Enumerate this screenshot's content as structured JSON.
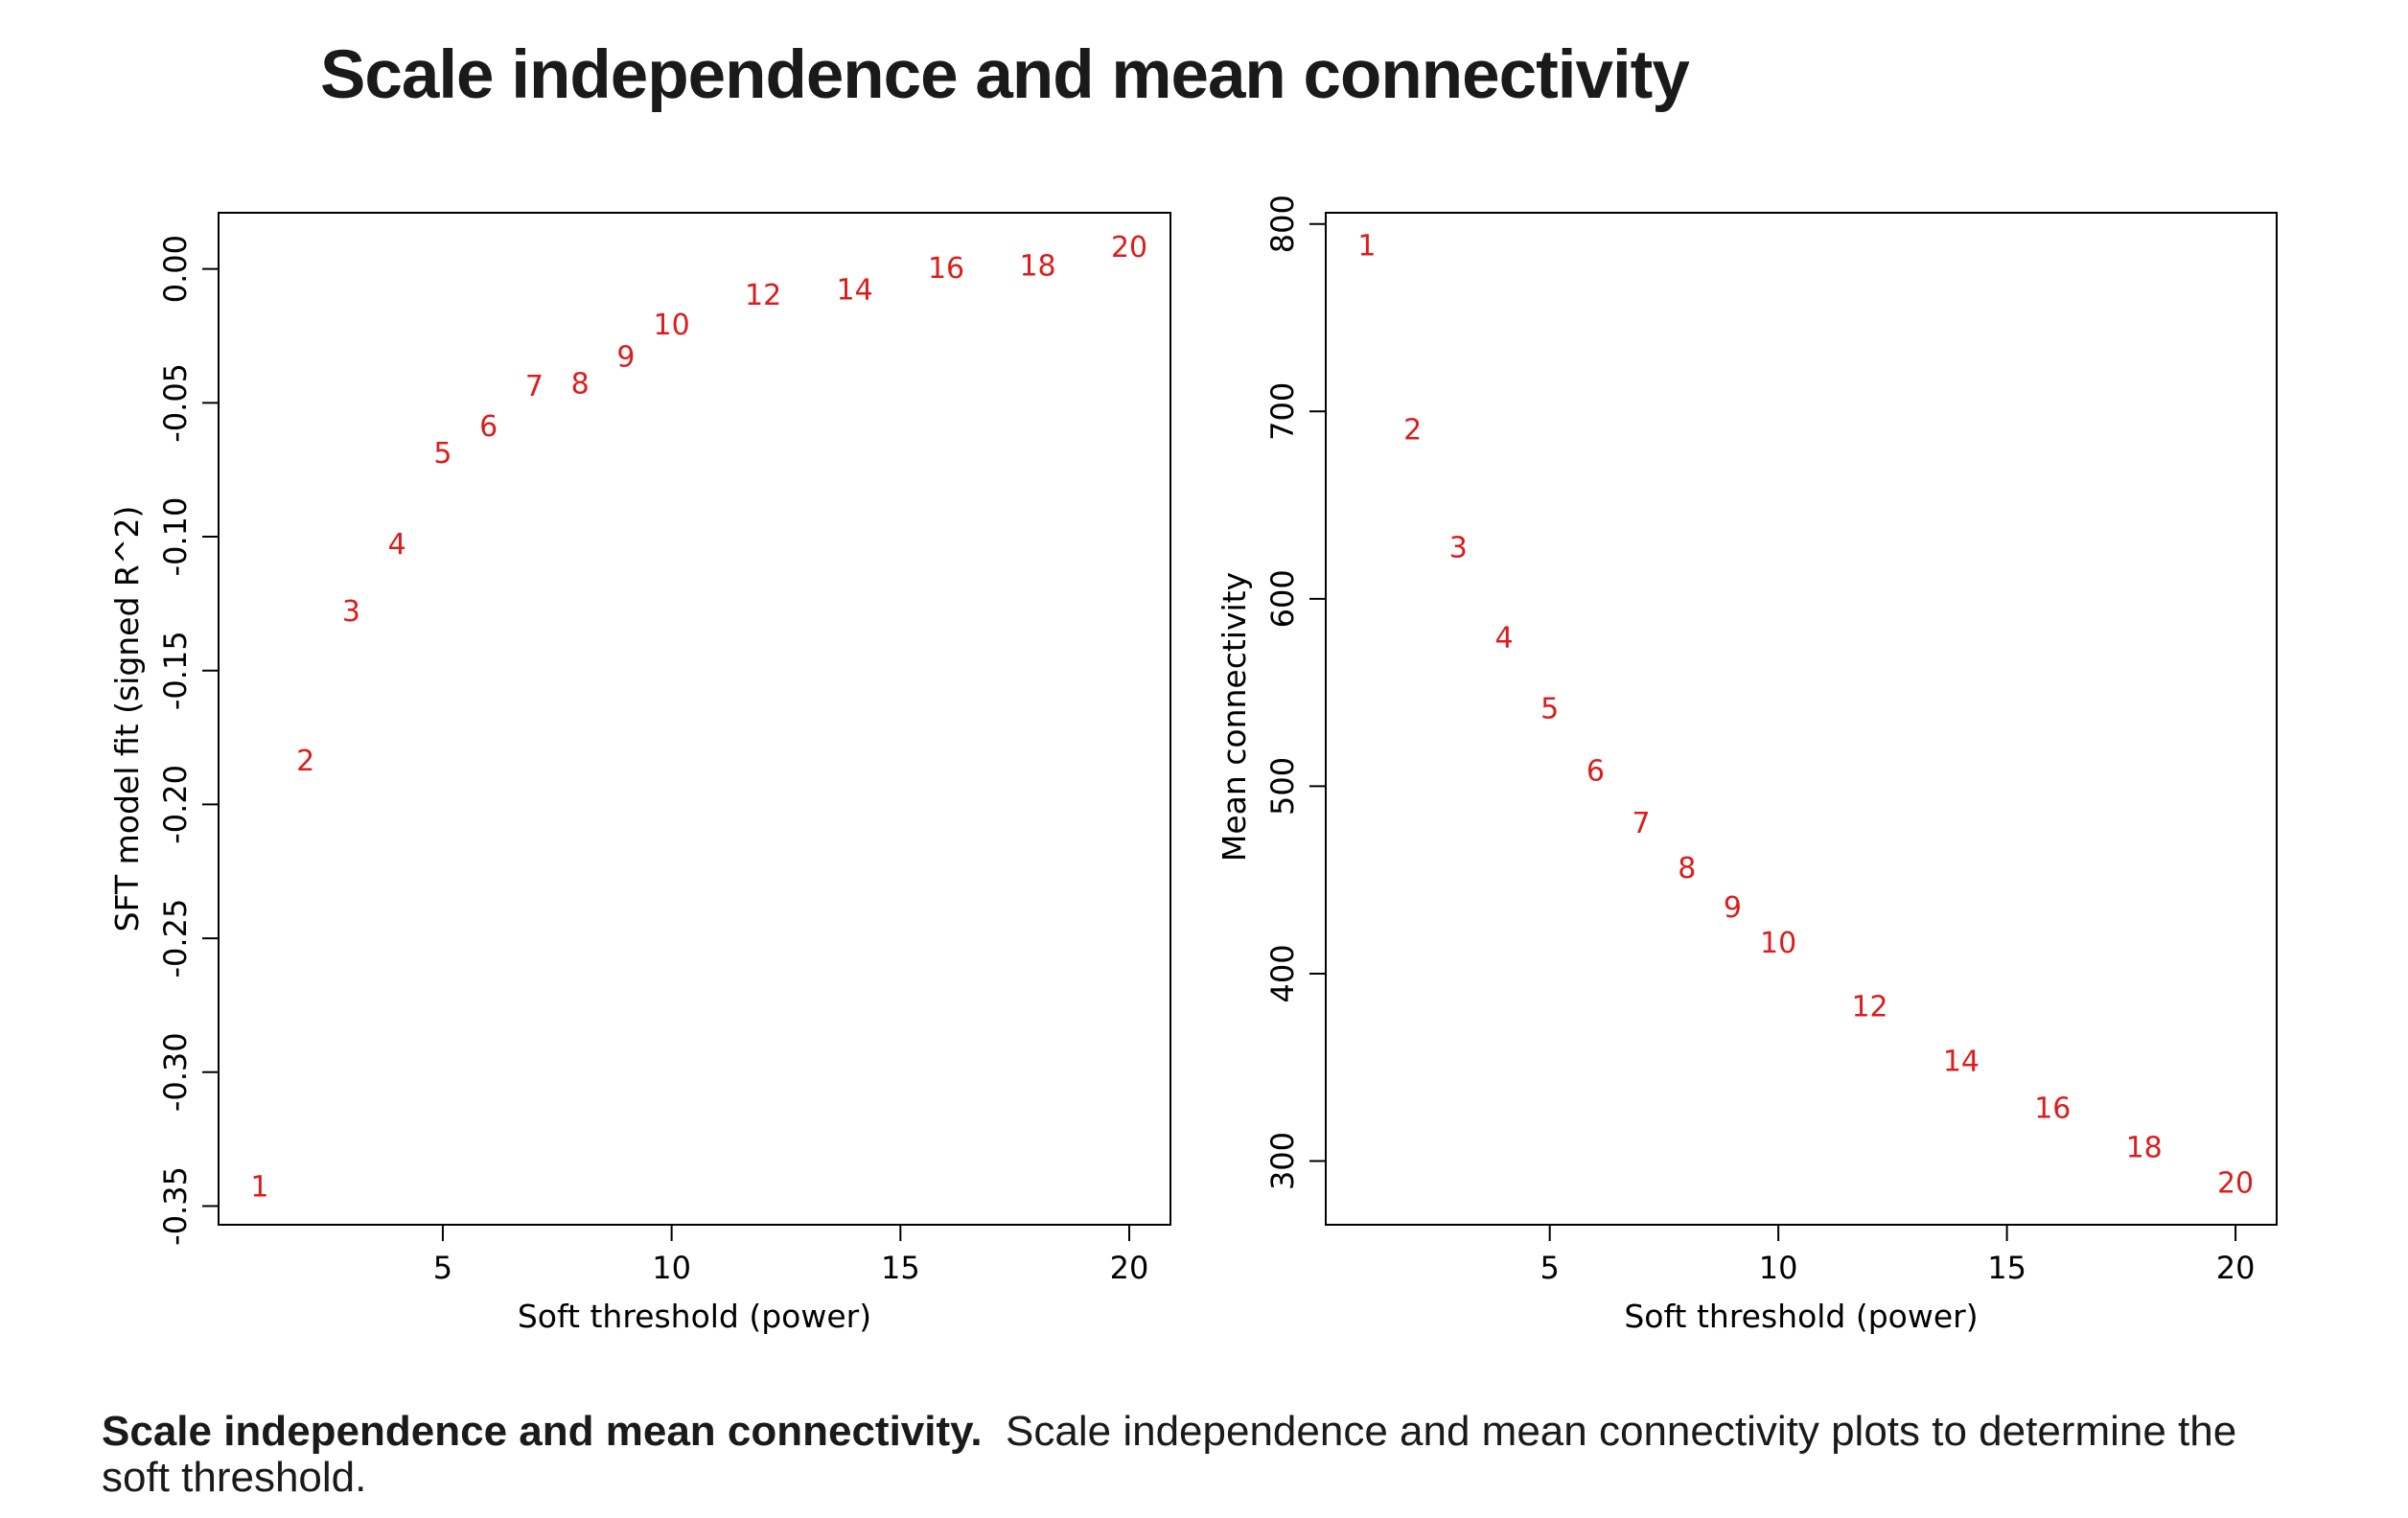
{
  "title": "Scale independence and mean connectivity",
  "caption": {
    "title": "Scale independence and mean connectivity.",
    "text": "Scale independence and mean connectivity plots to determine the soft threshold."
  },
  "colors": {
    "points": "#dd1c1c",
    "axis": "#000000",
    "text": "#1a1a1a"
  },
  "chart_data": [
    {
      "type": "scatter",
      "xlabel": "Soft threshold (power)",
      "ylabel": "SFT model fit (signed R^2)",
      "xlim": [
        0.1,
        20.9
      ],
      "ylim": [
        -0.357,
        0.021
      ],
      "xticks": [
        5,
        10,
        15,
        20
      ],
      "yticks": [
        -0.35,
        -0.3,
        -0.25,
        -0.2,
        -0.15,
        -0.1,
        -0.05,
        0.0
      ],
      "ytick_labels": [
        "-0.35",
        "-0.30",
        "-0.25",
        "-0.20",
        "-0.15",
        "-0.10",
        "-0.05",
        "0.00"
      ],
      "marker": "power label text",
      "x": [
        1,
        2,
        3,
        4,
        5,
        6,
        7,
        8,
        9,
        10,
        12,
        14,
        16,
        18,
        20
      ],
      "y": [
        -0.343,
        -0.184,
        -0.128,
        -0.103,
        -0.069,
        -0.059,
        -0.044,
        -0.043,
        -0.033,
        -0.021,
        -0.01,
        -0.008,
        0.0,
        0.001,
        0.008
      ],
      "point_labels": [
        "1",
        "2",
        "3",
        "4",
        "5",
        "6",
        "7",
        "8",
        "9",
        "10",
        "12",
        "14",
        "16",
        "18",
        "20"
      ]
    },
    {
      "type": "scatter",
      "xlabel": "Soft threshold (power)",
      "ylabel": "Mean connectivity",
      "xlim": [
        0.1,
        20.9
      ],
      "ylim": [
        266,
        806
      ],
      "xticks": [
        5,
        10,
        15,
        20
      ],
      "yticks": [
        300,
        400,
        500,
        600,
        700,
        800
      ],
      "ytick_labels": [
        "300",
        "400",
        "500",
        "600",
        "700",
        "800"
      ],
      "marker": "power label text",
      "x": [
        1,
        2,
        3,
        4,
        5,
        6,
        7,
        8,
        9,
        10,
        12,
        14,
        16,
        18,
        20
      ],
      "y": [
        788,
        690,
        627,
        579,
        541,
        508,
        480,
        456,
        435,
        416,
        382,
        353,
        328,
        307,
        288
      ],
      "point_labels": [
        "1",
        "2",
        "3",
        "4",
        "5",
        "6",
        "7",
        "8",
        "9",
        "10",
        "12",
        "14",
        "16",
        "18",
        "20"
      ]
    }
  ]
}
